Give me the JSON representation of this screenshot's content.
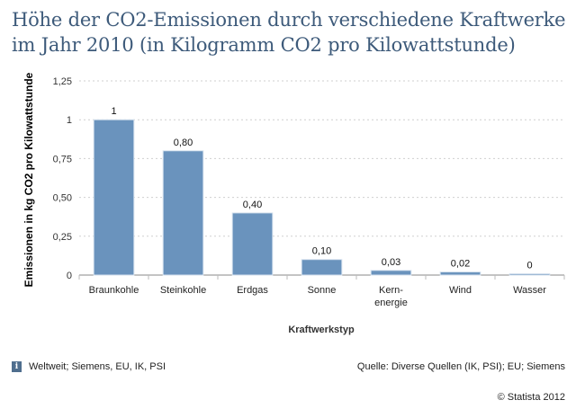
{
  "chart_data": {
    "type": "bar",
    "title": "Höhe der CO2-Emissionen durch verschiedene Kraftwerke im Jahr 2010 (in Kilogramm CO2 pro Kilowattstunde)",
    "xlabel": "Kraftwerkstyp",
    "ylabel": "Emissionen in kg CO2 pro Kilowattstunde",
    "categories": [
      [
        "Braunkohle"
      ],
      [
        "Steinkohle"
      ],
      [
        "Erdgas"
      ],
      [
        "Sonne"
      ],
      [
        "Kern-",
        "energie"
      ],
      [
        "Wind"
      ],
      [
        "Wasser"
      ]
    ],
    "values": [
      1,
      0.8,
      0.4,
      0.1,
      0.03,
      0.02,
      0
    ],
    "value_labels": [
      "1",
      "0,80",
      "0,40",
      "0,10",
      "0,03",
      "0,02",
      "0"
    ],
    "ylim": [
      0,
      1.25
    ],
    "yticks": [
      0,
      0.25,
      0.5,
      0.75,
      1,
      1.25
    ],
    "ytick_labels": [
      "0",
      "0,25",
      "0,50",
      "0,75",
      "1",
      "1,25"
    ],
    "grid": true,
    "bar_color": "#6a93bd"
  },
  "footer": {
    "info_icon": "i",
    "left_text": "Weltweit; Siemens, EU, IK, PSI",
    "right_text": "Quelle: Diverse Quellen (IK, PSI); EU; Siemens",
    "copyright": "© Statista 2012"
  }
}
